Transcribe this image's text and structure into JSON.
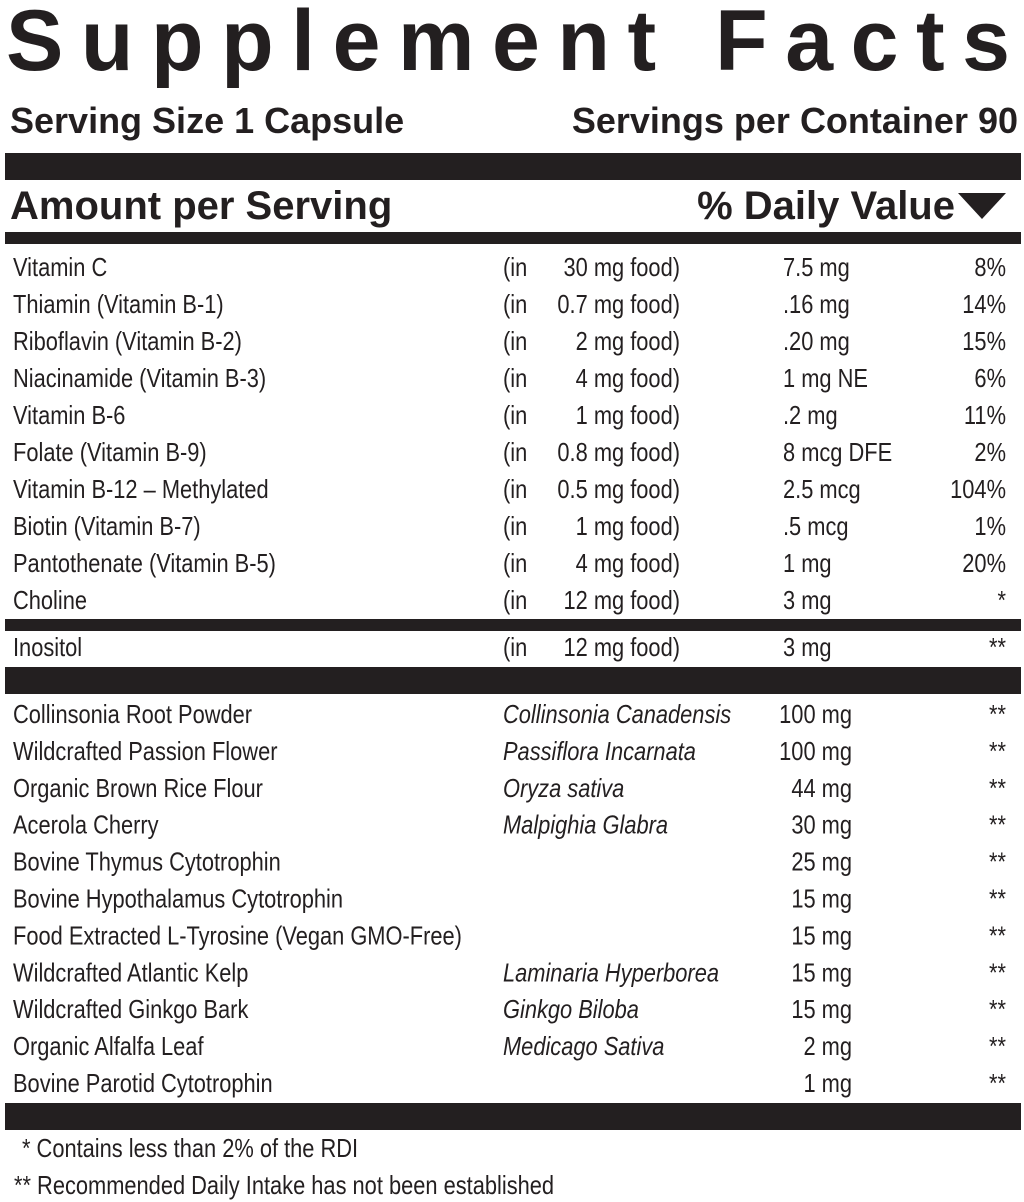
{
  "title": "Supplement Facts",
  "serving_size": "Serving Size 1 Capsule",
  "servings_per_container": "Servings per Container 90",
  "header": {
    "amount": "Amount per Serving",
    "daily_value": "% Daily Value"
  },
  "vitamins": [
    {
      "name": "Vitamin C",
      "in": "(in",
      "food": "30 mg food)",
      "amount": "7.5 mg",
      "dv": "8%"
    },
    {
      "name": "Thiamin (Vitamin B-1)",
      "in": "(in",
      "food": "0.7 mg food)",
      "amount": ".16 mg",
      "dv": "14%"
    },
    {
      "name": "Riboflavin (Vitamin B-2)",
      "in": "(in",
      "food": "2 mg food)",
      "amount": ".20 mg",
      "dv": "15%"
    },
    {
      "name": "Niacinamide (Vitamin B-3)",
      "in": "(in",
      "food": "4 mg food)",
      "amount": "1 mg NE",
      "dv": "6%"
    },
    {
      "name": "Vitamin B-6",
      "in": "(in",
      "food": "1 mg food)",
      "amount": ".2 mg",
      "dv": "11%"
    },
    {
      "name": "Folate (Vitamin B-9)",
      "in": "(in",
      "food": "0.8 mg food)",
      "amount": "8 mcg DFE",
      "dv": "2%"
    },
    {
      "name": "Vitamin B-12 – Methylated",
      "in": "(in",
      "food": "0.5 mg food)",
      "amount": "2.5 mcg",
      "dv": "104%"
    },
    {
      "name": "Biotin (Vitamin B-7)",
      "in": "(in",
      "food": "1 mg food)",
      "amount": ".5 mcg",
      "dv": "1%"
    },
    {
      "name": "Pantothenate (Vitamin B-5)",
      "in": "(in",
      "food": "4 mg food)",
      "amount": "1 mg",
      "dv": "20%"
    },
    {
      "name": "Choline",
      "in": "(in",
      "food": "12 mg food)",
      "amount": "3 mg",
      "dv": "*"
    }
  ],
  "inositol": {
    "name": "Inositol",
    "in": "(in",
    "food": "12 mg food)",
    "amount": "3 mg",
    "dv": "**"
  },
  "ingredients": [
    {
      "name": "Collinsonia Root Powder",
      "latin": "Collinsonia Canadensis",
      "amount": "100 mg",
      "dv": "**"
    },
    {
      "name": "Wildcrafted Passion Flower",
      "latin": "Passiflora Incarnata",
      "amount": "100 mg",
      "dv": "**"
    },
    {
      "name": "Organic Brown Rice Flour",
      "latin": "Oryza sativa",
      "amount": "44 mg",
      "dv": "**"
    },
    {
      "name": "Acerola Cherry",
      "latin": "Malpighia Glabra",
      "amount": "30 mg",
      "dv": "**"
    },
    {
      "name": "Bovine Thymus Cytotrophin",
      "amount": "25 mg",
      "dv": "**"
    },
    {
      "name": "Bovine Hypothalamus Cytotrophin",
      "amount": "15 mg",
      "dv": "**"
    },
    {
      "name": "Food Extracted L-Tyrosine (Vegan GMO-Free)",
      "amount": "15 mg",
      "dv": "**"
    },
    {
      "name": "Wildcrafted Atlantic Kelp",
      "latin": "Laminaria Hyperborea",
      "amount": "15 mg",
      "dv": "**"
    },
    {
      "name": "Wildcrafted Ginkgo Bark",
      "latin": "Ginkgo Biloba",
      "amount": "15 mg",
      "dv": "**"
    },
    {
      "name": "Organic Alfalfa Leaf",
      "latin": "Medicago Sativa",
      "amount": "2 mg",
      "dv": "**"
    },
    {
      "name": "Bovine Parotid Cytotrophin",
      "amount": "1 mg",
      "dv": "**"
    }
  ],
  "footnotes": [
    "* Contains less than 2% of the RDI",
    "** Recommended Daily Intake has not been established"
  ]
}
